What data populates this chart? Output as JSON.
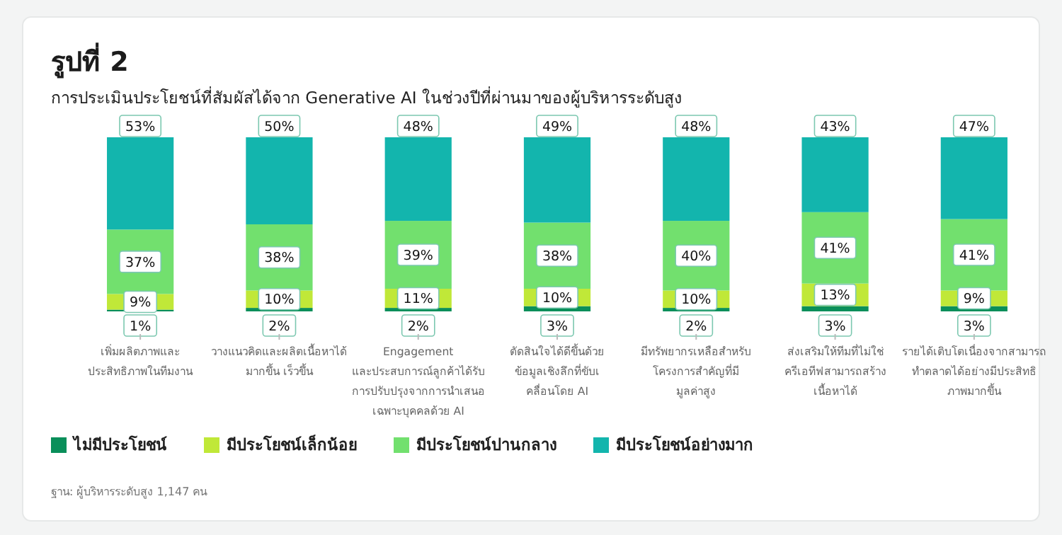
{
  "chart_data": {
    "type": "bar",
    "stacked": true,
    "title": "รูปที่ 2",
    "subtitle": "การประเมินประโยชน์ที่สัมผัสได้จาก Generative AI ในช่วงปีที่ผ่านมาของผู้บริหารระดับสูง",
    "categories": [
      "เพิ่มผลิตภาพและ\nประสิทธิภาพในทีมงาน",
      "วางแนวคิดและผลิตเนื้อหาได้\nมากขึ้น เร็วขึ้น",
      "Engagement\nและประสบการณ์ลูกค้าได้รับ\nการปรับปรุงจากการนำเสนอ\nเฉพาะบุคคลด้วย AI",
      "ตัดสินใจได้ดีขึ้นด้วย\nข้อมูลเชิงลึกที่ขับเ\nคลื่อนโดย AI",
      "มีทรัพยากรเหลือสำหรับ\nโครงการสำคัญที่มี\nมูลค่าสูง",
      "ส่งเสริมให้ทีมที่ไม่ใช่\nครีเอทีฟสามารถสร้าง\nเนื้อหาได้",
      "รายได้เติบโตเนื่องจากสามารถ\nทำตลาดได้อย่างมีประสิทธิ\nภาพมากขึ้น"
    ],
    "series": [
      {
        "name": "ไม่มีประโยชน์",
        "color": "#0a8f5a",
        "values": [
          1,
          2,
          2,
          3,
          2,
          3,
          3
        ],
        "value_labels": [
          "1%",
          "2%",
          "2%",
          "3%",
          "2%",
          "3%",
          "3%"
        ]
      },
      {
        "name": "มีประโยชน์เล็กน้อย",
        "color": "#c0e838",
        "values": [
          9,
          10,
          11,
          10,
          10,
          13,
          9
        ],
        "value_labels": [
          "9%",
          "10%",
          "11%",
          "10%",
          "10%",
          "13%",
          "9%"
        ]
      },
      {
        "name": "มีประโยชน์ปานกลาง",
        "color": "#72e06e",
        "values": [
          37,
          38,
          39,
          38,
          40,
          41,
          41
        ],
        "value_labels": [
          "37%",
          "38%",
          "39%",
          "38%",
          "40%",
          "41%",
          "41%"
        ]
      },
      {
        "name": "มีประโยชน์อย่างมาก",
        "color": "#13b5ad",
        "values": [
          53,
          50,
          48,
          49,
          48,
          43,
          47
        ],
        "value_labels": [
          "53%",
          "50%",
          "48%",
          "49%",
          "48%",
          "43%",
          "47%"
        ]
      }
    ],
    "tick_labels": "x",
    "legend": "bottom left",
    "annotations": [
      "ฐาน: ผู้บริหารระดับสูง 1,147 คน"
    ]
  }
}
